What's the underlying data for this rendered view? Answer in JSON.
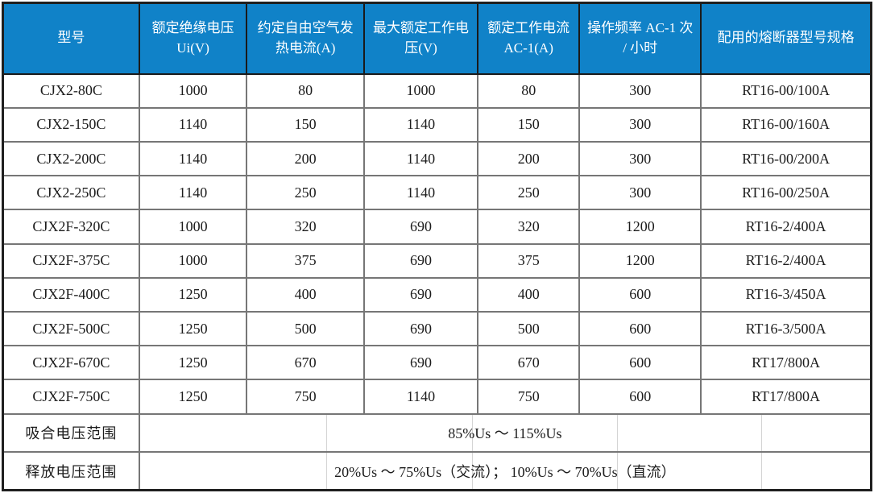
{
  "colors": {
    "header_bg": "#1082c8",
    "header_text": "#ffffff",
    "grid_line": "#767676",
    "outer_border": "#1f1f1f",
    "body_text": "#1c1c1c",
    "faint_merged_gridline": "#d4d4d4"
  },
  "header": {
    "columns": [
      "型号",
      "额定绝缘电压 Ui(V)",
      "约定自由空气发热电流(A)",
      "最大额定工作电压(V)",
      "额定工作电流 AC-1(A)",
      "操作频率 AC-1 次 / 小时",
      "配用的熔断器型号规格"
    ]
  },
  "rows": [
    [
      "CJX2-80C",
      "1000",
      "80",
      "1000",
      "80",
      "300",
      "RT16-00/100A"
    ],
    [
      "CJX2-150C",
      "1140",
      "150",
      "1140",
      "150",
      "300",
      "RT16-00/160A"
    ],
    [
      "CJX2-200C",
      "1140",
      "200",
      "1140",
      "200",
      "300",
      "RT16-00/200A"
    ],
    [
      "CJX2-250C",
      "1140",
      "250",
      "1140",
      "250",
      "300",
      "RT16-00/250A"
    ],
    [
      "CJX2F-320C",
      "1000",
      "320",
      "690",
      "320",
      "1200",
      "RT16-2/400A"
    ],
    [
      "CJX2F-375C",
      "1000",
      "375",
      "690",
      "375",
      "1200",
      "RT16-2/400A"
    ],
    [
      "CJX2F-400C",
      "1250",
      "400",
      "690",
      "400",
      "600",
      "RT16-3/450A"
    ],
    [
      "CJX2F-500C",
      "1250",
      "500",
      "690",
      "500",
      "600",
      "RT16-3/500A"
    ],
    [
      "CJX2F-670C",
      "1250",
      "670",
      "690",
      "670",
      "600",
      "RT17/800A"
    ],
    [
      "CJX2F-750C",
      "1250",
      "750",
      "1140",
      "750",
      "600",
      "RT17/800A"
    ]
  ],
  "footer": [
    {
      "label": "吸合电压范围",
      "value": "85%Us ～ 115%Us"
    },
    {
      "label": "释放电压范围",
      "value": "20%Us ～ 75%Us（交流）； 10%Us ～ 70%Us（直流）"
    }
  ],
  "chart_data": {
    "type": "table",
    "columns": [
      "型号",
      "额定绝缘电压 Ui(V)",
      "约定自由空气发热电流(A)",
      "最大额定工作电压(V)",
      "额定工作电流 AC-1(A)",
      "操作频率 AC-1 次 / 小时",
      "配用的熔断器型号规格"
    ],
    "rows": [
      [
        "CJX2-80C",
        1000,
        80,
        1000,
        80,
        300,
        "RT16-00/100A"
      ],
      [
        "CJX2-150C",
        1140,
        150,
        1140,
        150,
        300,
        "RT16-00/160A"
      ],
      [
        "CJX2-200C",
        1140,
        200,
        1140,
        200,
        300,
        "RT16-00/200A"
      ],
      [
        "CJX2-250C",
        1140,
        250,
        1140,
        250,
        300,
        "RT16-00/250A"
      ],
      [
        "CJX2F-320C",
        1000,
        320,
        690,
        320,
        1200,
        "RT16-2/400A"
      ],
      [
        "CJX2F-375C",
        1000,
        375,
        690,
        375,
        1200,
        "RT16-2/400A"
      ],
      [
        "CJX2F-400C",
        1250,
        400,
        690,
        400,
        600,
        "RT16-3/450A"
      ],
      [
        "CJX2F-500C",
        1250,
        500,
        690,
        500,
        600,
        "RT16-3/500A"
      ],
      [
        "CJX2F-670C",
        1250,
        670,
        690,
        670,
        600,
        "RT17/800A"
      ],
      [
        "CJX2F-750C",
        1250,
        750,
        1140,
        750,
        600,
        "RT17/800A"
      ]
    ],
    "footer_rows": [
      [
        "吸合电压范围",
        "85%Us ～ 115%Us"
      ],
      [
        "释放电压范围",
        "20%Us ～ 75%Us（交流）； 10%Us ～ 70%Us（直流）"
      ]
    ]
  }
}
